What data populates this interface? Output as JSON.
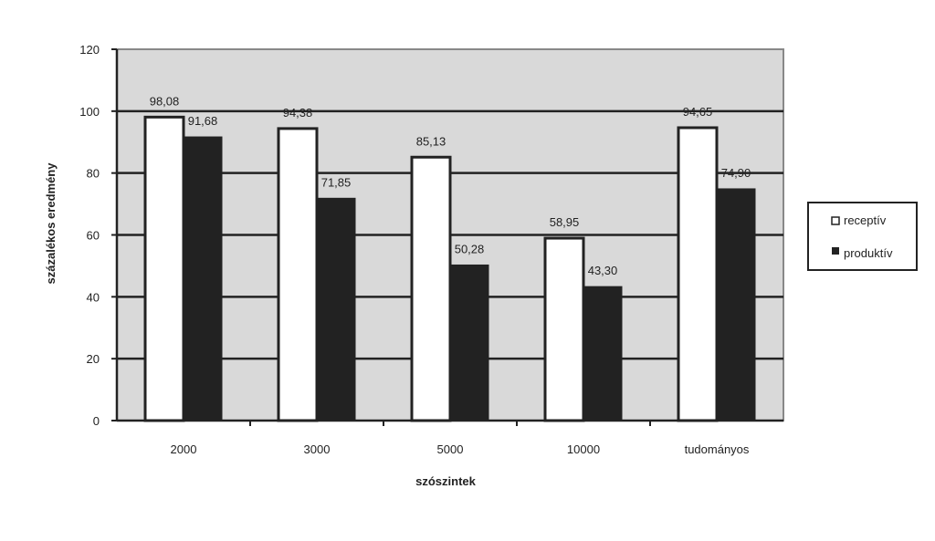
{
  "chart_data": {
    "type": "bar",
    "categories": [
      "2000",
      "3000",
      "5000",
      "10000",
      "tudományos"
    ],
    "series": [
      {
        "name": "receptív",
        "values": [
          98.08,
          94.38,
          85.13,
          58.95,
          94.65
        ],
        "labels": [
          "98,08",
          "94,38",
          "85,13",
          "58,95",
          "94,65"
        ],
        "color": "#ffffff"
      },
      {
        "name": "produktív",
        "values": [
          91.68,
          71.85,
          50.28,
          43.3,
          74.9
        ],
        "labels": [
          "91,68",
          "71,85",
          "50,28",
          "43,30",
          "74,90"
        ],
        "color": "#222222"
      }
    ],
    "xlabel": "szószintek",
    "ylabel": "százalékos eredmény",
    "ylim": [
      0,
      120
    ],
    "yticks": [
      "0",
      "20",
      "40",
      "60",
      "80",
      "100",
      "120"
    ],
    "grid": true,
    "plot_background": "#d9d9d9",
    "legend_position": "right"
  }
}
